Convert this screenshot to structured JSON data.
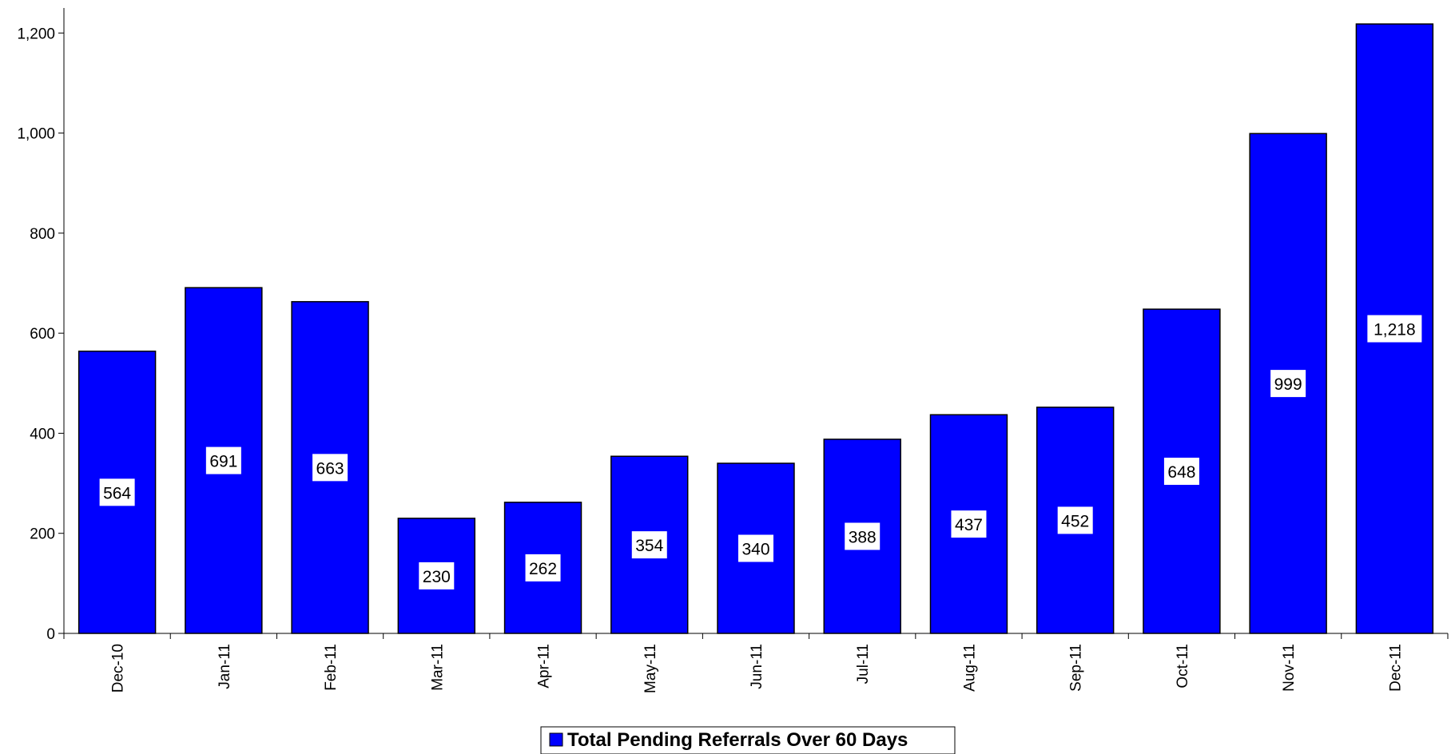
{
  "chart_data": {
    "type": "bar",
    "title": "",
    "xlabel": "",
    "ylabel": "",
    "categories": [
      "Dec-10",
      "Jan-11",
      "Feb-11",
      "Mar-11",
      "Apr-11",
      "May-11",
      "Jun-11",
      "Jul-11",
      "Aug-11",
      "Sep-11",
      "Oct-11",
      "Nov-11",
      "Dec-11"
    ],
    "series": [
      {
        "name": "Total Pending Referrals Over 60 Days",
        "values": [
          564,
          691,
          663,
          230,
          262,
          354,
          340,
          388,
          437,
          452,
          648,
          999,
          1218
        ],
        "labels": [
          "564",
          "691",
          "663",
          "230",
          "262",
          "354",
          "340",
          "388",
          "437",
          "452",
          "648",
          "999",
          "1,218"
        ],
        "color": "#0000ff"
      }
    ],
    "ylim": [
      0,
      1250
    ],
    "yticks": [
      0,
      200,
      400,
      600,
      800,
      1000,
      1200
    ],
    "ytick_labels": [
      "0",
      "200",
      "400",
      "600",
      "800",
      "1,000",
      "1,200"
    ],
    "grid": false,
    "legend": "bottom-center",
    "bar_outline_color": "#000000"
  }
}
